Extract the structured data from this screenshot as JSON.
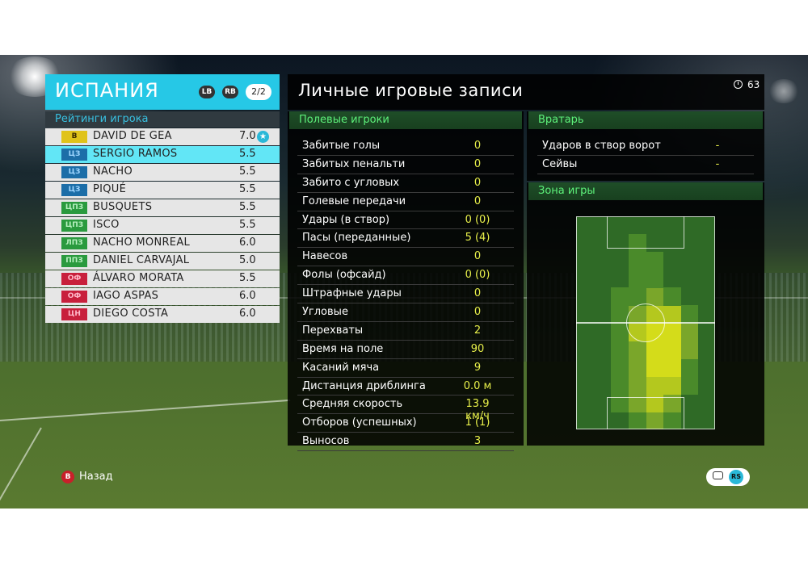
{
  "team": {
    "name": "ИСПАНИЯ",
    "lb_label": "LB",
    "rb_label": "RB",
    "page": "2/2",
    "ratings_heading": "Рейтинги игрока"
  },
  "players": [
    {
      "pos": "В",
      "pos_group": "gk",
      "name": "DAVID DE GEA",
      "rating": "7.0",
      "star": true
    },
    {
      "pos": "ЦЗ",
      "pos_group": "def",
      "name": "SERGIO RAMOS",
      "rating": "5.5",
      "selected": true
    },
    {
      "pos": "ЦЗ",
      "pos_group": "def",
      "name": "NACHO",
      "rating": "5.5"
    },
    {
      "pos": "ЦЗ",
      "pos_group": "def",
      "name": "PIQUÉ",
      "rating": "5.5"
    },
    {
      "pos": "ЦПЗ",
      "pos_group": "mid",
      "name": "BUSQUETS",
      "rating": "5.5"
    },
    {
      "pos": "ЦПЗ",
      "pos_group": "mid",
      "name": "ISCO",
      "rating": "5.5"
    },
    {
      "pos": "ЛПЗ",
      "pos_group": "mid",
      "name": "NACHO MONREAL",
      "rating": "6.0"
    },
    {
      "pos": "ППЗ",
      "pos_group": "mid",
      "name": "DANIEL CARVAJAL",
      "rating": "5.0"
    },
    {
      "pos": "ОФ",
      "pos_group": "fwd",
      "name": "ÁLVARO MORATA",
      "rating": "5.5"
    },
    {
      "pos": "ОФ",
      "pos_group": "fwd",
      "name": "IAGO ASPAS",
      "rating": "6.0"
    },
    {
      "pos": "ЦН",
      "pos_group": "fwd",
      "name": "DIEGO COSTA",
      "rating": "6.0"
    }
  ],
  "records": {
    "title": "Личные игровые записи",
    "timer": "63",
    "field_players_heading": "Полевые игроки",
    "goalkeeper_heading": "Вратарь",
    "zone_heading": "Зона игры",
    "field_stats": [
      {
        "label": "Забитые голы",
        "value": "0"
      },
      {
        "label": "Забитых пенальти",
        "value": "0"
      },
      {
        "label": "Забито с угловых",
        "value": "0"
      },
      {
        "label": "Голевые передачи",
        "value": "0"
      },
      {
        "label": "Удары (в створ)",
        "value": "0 (0)"
      },
      {
        "label": "Пасы (переданные)",
        "value": "5 (4)"
      },
      {
        "label": "Навесов",
        "value": "0"
      },
      {
        "label": "Фолы (офсайд)",
        "value": "0 (0)"
      },
      {
        "label": "Штрафные удары",
        "value": "0"
      },
      {
        "label": "Угловые",
        "value": "0"
      },
      {
        "label": "Перехваты",
        "value": "2"
      },
      {
        "label": "Время на поле",
        "value": "90"
      },
      {
        "label": "Касаний мяча",
        "value": "9"
      },
      {
        "label": "Дистанция дриблинга",
        "value": "0.0 м"
      },
      {
        "label": "Средняя скорость",
        "value": "13.9 км/ч"
      },
      {
        "label": "Отборов (успешных)",
        "value": "1 (1)"
      },
      {
        "label": "Выносов",
        "value": "3"
      }
    ],
    "gk_stats": [
      {
        "label": "Ударов в створ ворот",
        "value": "-"
      },
      {
        "label": "Сейвы",
        "value": "-"
      }
    ]
  },
  "footer": {
    "back_key": "B",
    "back_label": "Назад",
    "rs_label": "RS"
  },
  "colors": {
    "team_header": "#26c8e6",
    "selected_row": "#62e6f6",
    "stat_value": "#e8f04a",
    "section_heading_text": "#5df07a"
  }
}
